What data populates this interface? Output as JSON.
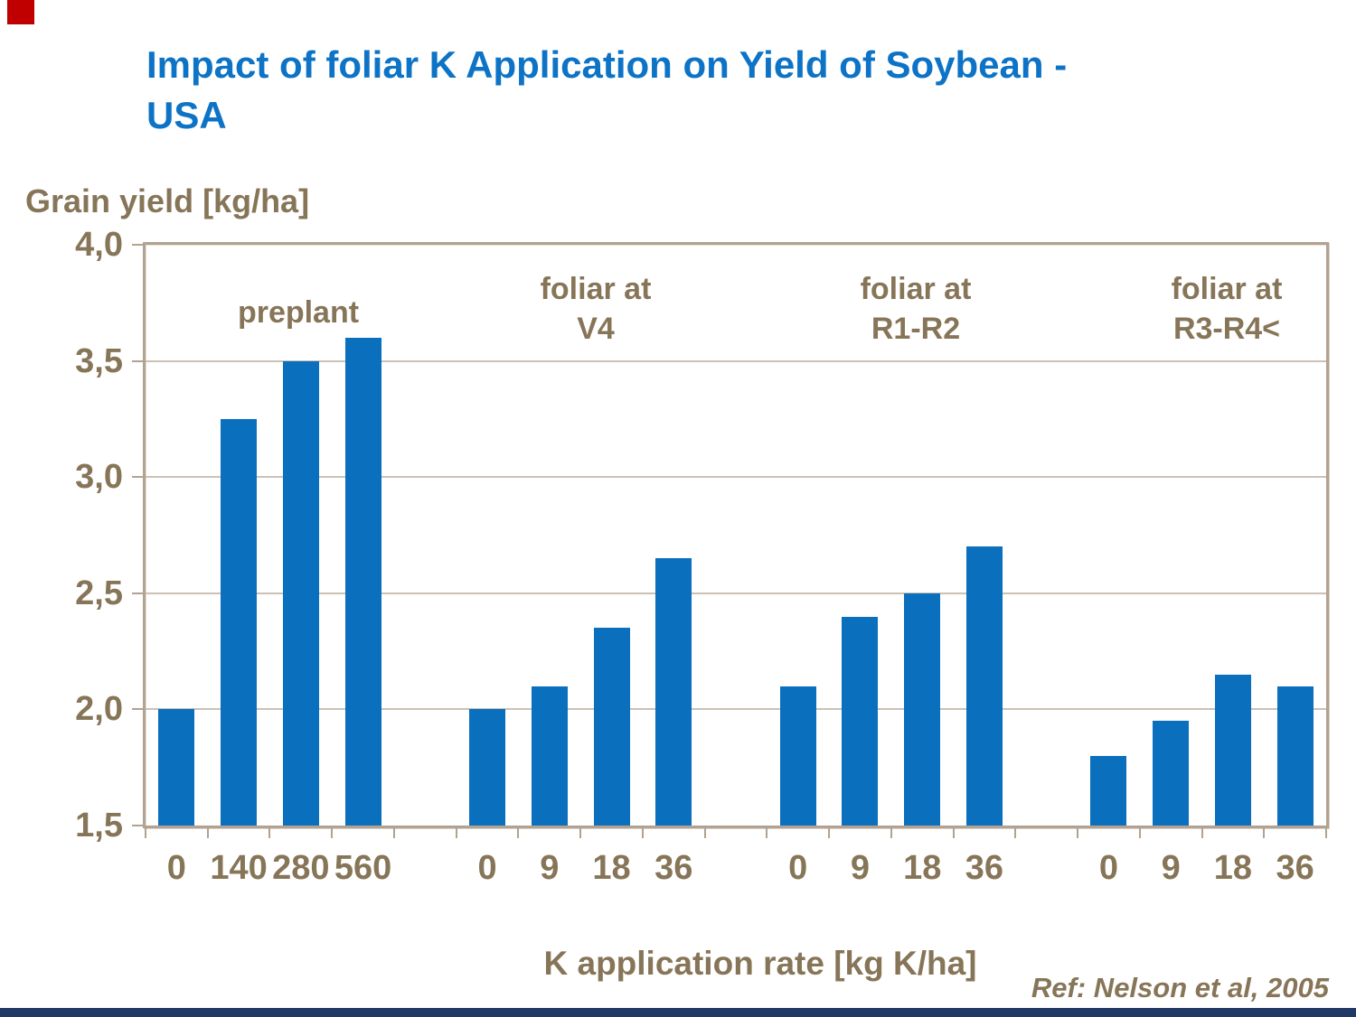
{
  "slide": {
    "title": {
      "line1": "Impact of foliar K Application on Yield of Soybean -",
      "line2": "USA"
    },
    "footer_ref": "Ref: Nelson et al, 2005",
    "decorations": {
      "red_square_color": "#c00000",
      "footer_bar_color": "#1f3864"
    },
    "colors": {
      "title_blue": "#0d73c6",
      "bar_blue": "#0a70be",
      "label_brown": "#877558",
      "frame_tan": "#b2a291",
      "gridline": "#cbc2b4"
    }
  },
  "chart_data": {
    "type": "bar",
    "title": "Impact of foliar K Application on Yield of Soybean - USA",
    "ylabel": "Grain yield [kg/ha]",
    "xlabel": "K application rate [kg K/ha]",
    "ylim": [
      1.5,
      4.0
    ],
    "ytick_step": 0.5,
    "yticks": [
      {
        "value": 4.0,
        "label": "4,0"
      },
      {
        "value": 3.5,
        "label": "3,5"
      },
      {
        "value": 3.0,
        "label": "3,0"
      },
      {
        "value": 2.5,
        "label": "2,5"
      },
      {
        "value": 2.0,
        "label": "2,0"
      },
      {
        "value": 1.5,
        "label": "1,5"
      }
    ],
    "grid": true,
    "legend_position": "none",
    "groups": [
      {
        "label": "preplant",
        "label_lines": [
          "preplant"
        ],
        "categories": [
          "0",
          "140",
          "280",
          "560"
        ],
        "values": [
          2.0,
          3.25,
          3.5,
          3.6
        ]
      },
      {
        "label": "foliar at V4",
        "label_lines": [
          "foliar at",
          "V4"
        ],
        "categories": [
          "0",
          "9",
          "18",
          "36"
        ],
        "values": [
          2.0,
          2.1,
          2.35,
          2.65
        ]
      },
      {
        "label": "foliar at R1-R2",
        "label_lines": [
          "foliar at",
          "R1-R2"
        ],
        "categories": [
          "0",
          "9",
          "18",
          "36"
        ],
        "values": [
          2.1,
          2.4,
          2.5,
          2.7
        ]
      },
      {
        "label": "foliar at R3-R4<",
        "label_lines": [
          "foliar at",
          "R3-R4<"
        ],
        "categories": [
          "0",
          "9",
          "18",
          "36"
        ],
        "values": [
          1.8,
          1.95,
          2.15,
          2.1
        ]
      }
    ],
    "reference": "Ref: Nelson et al, 2005"
  }
}
